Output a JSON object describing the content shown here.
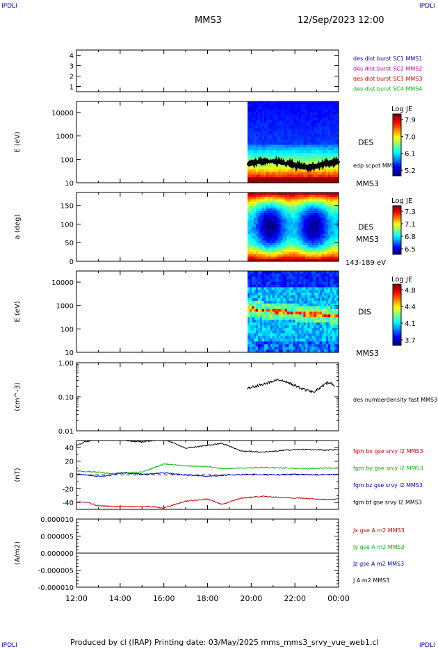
{
  "header": {
    "corner_tl": "IPDLI",
    "corner_tr": "IPDLI",
    "corner_bl": "IPDLI",
    "corner_br": "IPDLI",
    "title": "MMS3",
    "datetime": "12/Sep/2023 12:00",
    "footer": "Produced by cl (IRAP)   Printing date: 03/May/2025   mms_mms3_srvy_vue_web1.cl"
  },
  "colors": {
    "blue": "#0000cc",
    "magenta": "#cc00cc",
    "red": "#cc0000",
    "green": "#00bb00",
    "black": "#000000"
  },
  "chart_data": [
    {
      "type": "line",
      "panel": "burst",
      "yticks": [
        "4",
        "3",
        "2",
        "1"
      ],
      "ylim": [
        0.5,
        4.5
      ],
      "legend": [
        {
          "label": "des dist burst SC1 MMS1",
          "color": "#0000cc"
        },
        {
          "label": "des dist burst SC2 MMS2",
          "color": "#cc00cc"
        },
        {
          "label": "des dist burst SC3 MMS3",
          "color": "#cc0000"
        },
        {
          "label": "des dist burst SC4 MMS4",
          "color": "#00bb00"
        }
      ]
    },
    {
      "type": "heatmap",
      "panel": "des-energy",
      "ylabel": "E (eV)",
      "yscale": "log",
      "ylim": [
        10,
        30000
      ],
      "yticks": [
        "10000",
        "1000",
        "100",
        "10"
      ],
      "data_start": "19:50",
      "label": "DES",
      "sublabel": "MMS3",
      "overlay": {
        "label": "edp scpot MMS3",
        "value_range": [
          40,
          90
        ]
      },
      "colorbar": {
        "title": "Log JE",
        "ticks": [
          "7.9",
          "7.0",
          "6.1",
          "5.2"
        ]
      }
    },
    {
      "type": "heatmap",
      "panel": "des-pitch",
      "ylabel": "a (deg)",
      "ylim": [
        0,
        185
      ],
      "yticks": [
        "150",
        "100",
        "50",
        "0"
      ],
      "data_start": "19:50",
      "label": "DES",
      "sublabel": "MMS3",
      "energy_range": "143-189 eV",
      "colorbar": {
        "title": "Log JE",
        "ticks": [
          "7.3",
          "7.1",
          "6.8",
          "6.5"
        ]
      }
    },
    {
      "type": "heatmap",
      "panel": "dis-energy",
      "ylabel": "E (eV)",
      "yscale": "log",
      "ylim": [
        10,
        30000
      ],
      "yticks": [
        "10000",
        "1000",
        "100",
        "10"
      ],
      "data_start": "19:50",
      "label": "DIS",
      "sublabel": "MMS3",
      "colorbar": {
        "title": "Log JE",
        "ticks": [
          "4.8",
          "4.4",
          "4.1",
          "3.7"
        ]
      }
    },
    {
      "type": "line",
      "panel": "density",
      "ylabel": "(cm^-3)",
      "yscale": "log",
      "ylim": [
        0.01,
        1.0
      ],
      "yticks": [
        "1.00",
        "0.10",
        "0.01"
      ],
      "series": [
        {
          "name": "des numberdensity fast MMS3",
          "color": "#000000",
          "x": [
            "19:50",
            "20:10",
            "20:30",
            "20:50",
            "21:10",
            "21:30",
            "21:50",
            "22:10",
            "22:30",
            "22:50",
            "23:10",
            "23:30",
            "23:50"
          ],
          "values": [
            0.18,
            0.2,
            0.23,
            0.26,
            0.32,
            0.28,
            0.24,
            0.19,
            0.16,
            0.14,
            0.18,
            0.26,
            0.22
          ]
        }
      ]
    },
    {
      "type": "line",
      "panel": "fgm",
      "ylabel": "(nT)",
      "ylim": [
        -50,
        50
      ],
      "yticks": [
        "40",
        "20",
        "0",
        "-20",
        "-40"
      ],
      "series": [
        {
          "name": "fgm bx gse srvy l2 MMS3",
          "color": "#cc0000",
          "x": [
            "12:00",
            "12:30",
            "13:00",
            "14:00",
            "15:00",
            "15:30",
            "16:00",
            "17:00",
            "18:00",
            "18:40",
            "19:30",
            "20:30",
            "21:30",
            "22:30",
            "23:30",
            "24:00"
          ],
          "values": [
            -39,
            -40,
            -45,
            -46,
            -46,
            -46,
            -48,
            -38,
            -35,
            -43,
            -34,
            -31,
            -33,
            -34,
            -36,
            -35
          ]
        },
        {
          "name": "fgm by gse srvy l2 MMS3",
          "color": "#00bb00",
          "x": [
            "12:00",
            "12:30",
            "13:00",
            "13:30",
            "14:00",
            "15:00",
            "16:00",
            "17:00",
            "18:00",
            "18:40",
            "19:30",
            "20:30",
            "21:30",
            "22:30",
            "23:30",
            "24:00"
          ],
          "values": [
            6,
            5,
            4,
            2,
            3,
            4,
            16,
            13,
            12,
            9,
            10,
            11,
            10,
            9,
            10,
            10
          ]
        },
        {
          "name": "fgm bz gse srvy l2 MMS3",
          "color": "#0000cc",
          "x": [
            "12:00",
            "12:30",
            "13:00",
            "13:30",
            "14:00",
            "15:00",
            "16:00",
            "17:00",
            "18:00",
            "19:00",
            "20:00",
            "21:00",
            "22:00",
            "23:00",
            "24:00"
          ],
          "values": [
            1,
            0,
            -2,
            -1,
            3,
            1,
            3,
            0,
            -2,
            0,
            1,
            0,
            1,
            0,
            1
          ]
        },
        {
          "name": "fgm bt gse srvy l2 MMS3",
          "color": "#000000",
          "x": [
            "12:00",
            "12:20",
            "13:00",
            "14:00",
            "14:30",
            "15:00",
            "16:00",
            "17:00",
            "18:00",
            "18:40",
            "19:30",
            "20:30",
            "21:30",
            "22:30",
            "23:30",
            "24:00"
          ],
          "values": [
            42,
            48,
            52,
            52,
            49,
            48,
            52,
            39,
            43,
            46,
            35,
            33,
            36,
            37,
            36,
            37
          ]
        }
      ]
    },
    {
      "type": "line",
      "panel": "current",
      "ylabel": "(A/m2)",
      "ylim": [
        -1e-05,
        1e-05
      ],
      "yticks": [
        "0.000010",
        "0.000005",
        "0.000000",
        "-0.000005",
        "-0.000010"
      ],
      "series": [
        {
          "name": "Jx gse A m2 MMS3",
          "color": "#cc0000"
        },
        {
          "name": "Jy gse A m2 MMS3",
          "color": "#00bb00"
        },
        {
          "name": "Jz gse A m2 MMS3",
          "color": "#0000cc"
        },
        {
          "name": "J A m2 MMS3",
          "color": "#000000",
          "x": [
            "12:00",
            "14:00",
            "16:00",
            "18:00",
            "20:00",
            "22:00",
            "24:00"
          ],
          "values": [
            0,
            0,
            0,
            0,
            0,
            0,
            0
          ]
        }
      ]
    },
    {
      "type": "axis",
      "panel": "time-axis",
      "xticks": [
        "12:00",
        "14:00",
        "16:00",
        "18:00",
        "20:00",
        "22:00",
        "00:00"
      ]
    }
  ]
}
